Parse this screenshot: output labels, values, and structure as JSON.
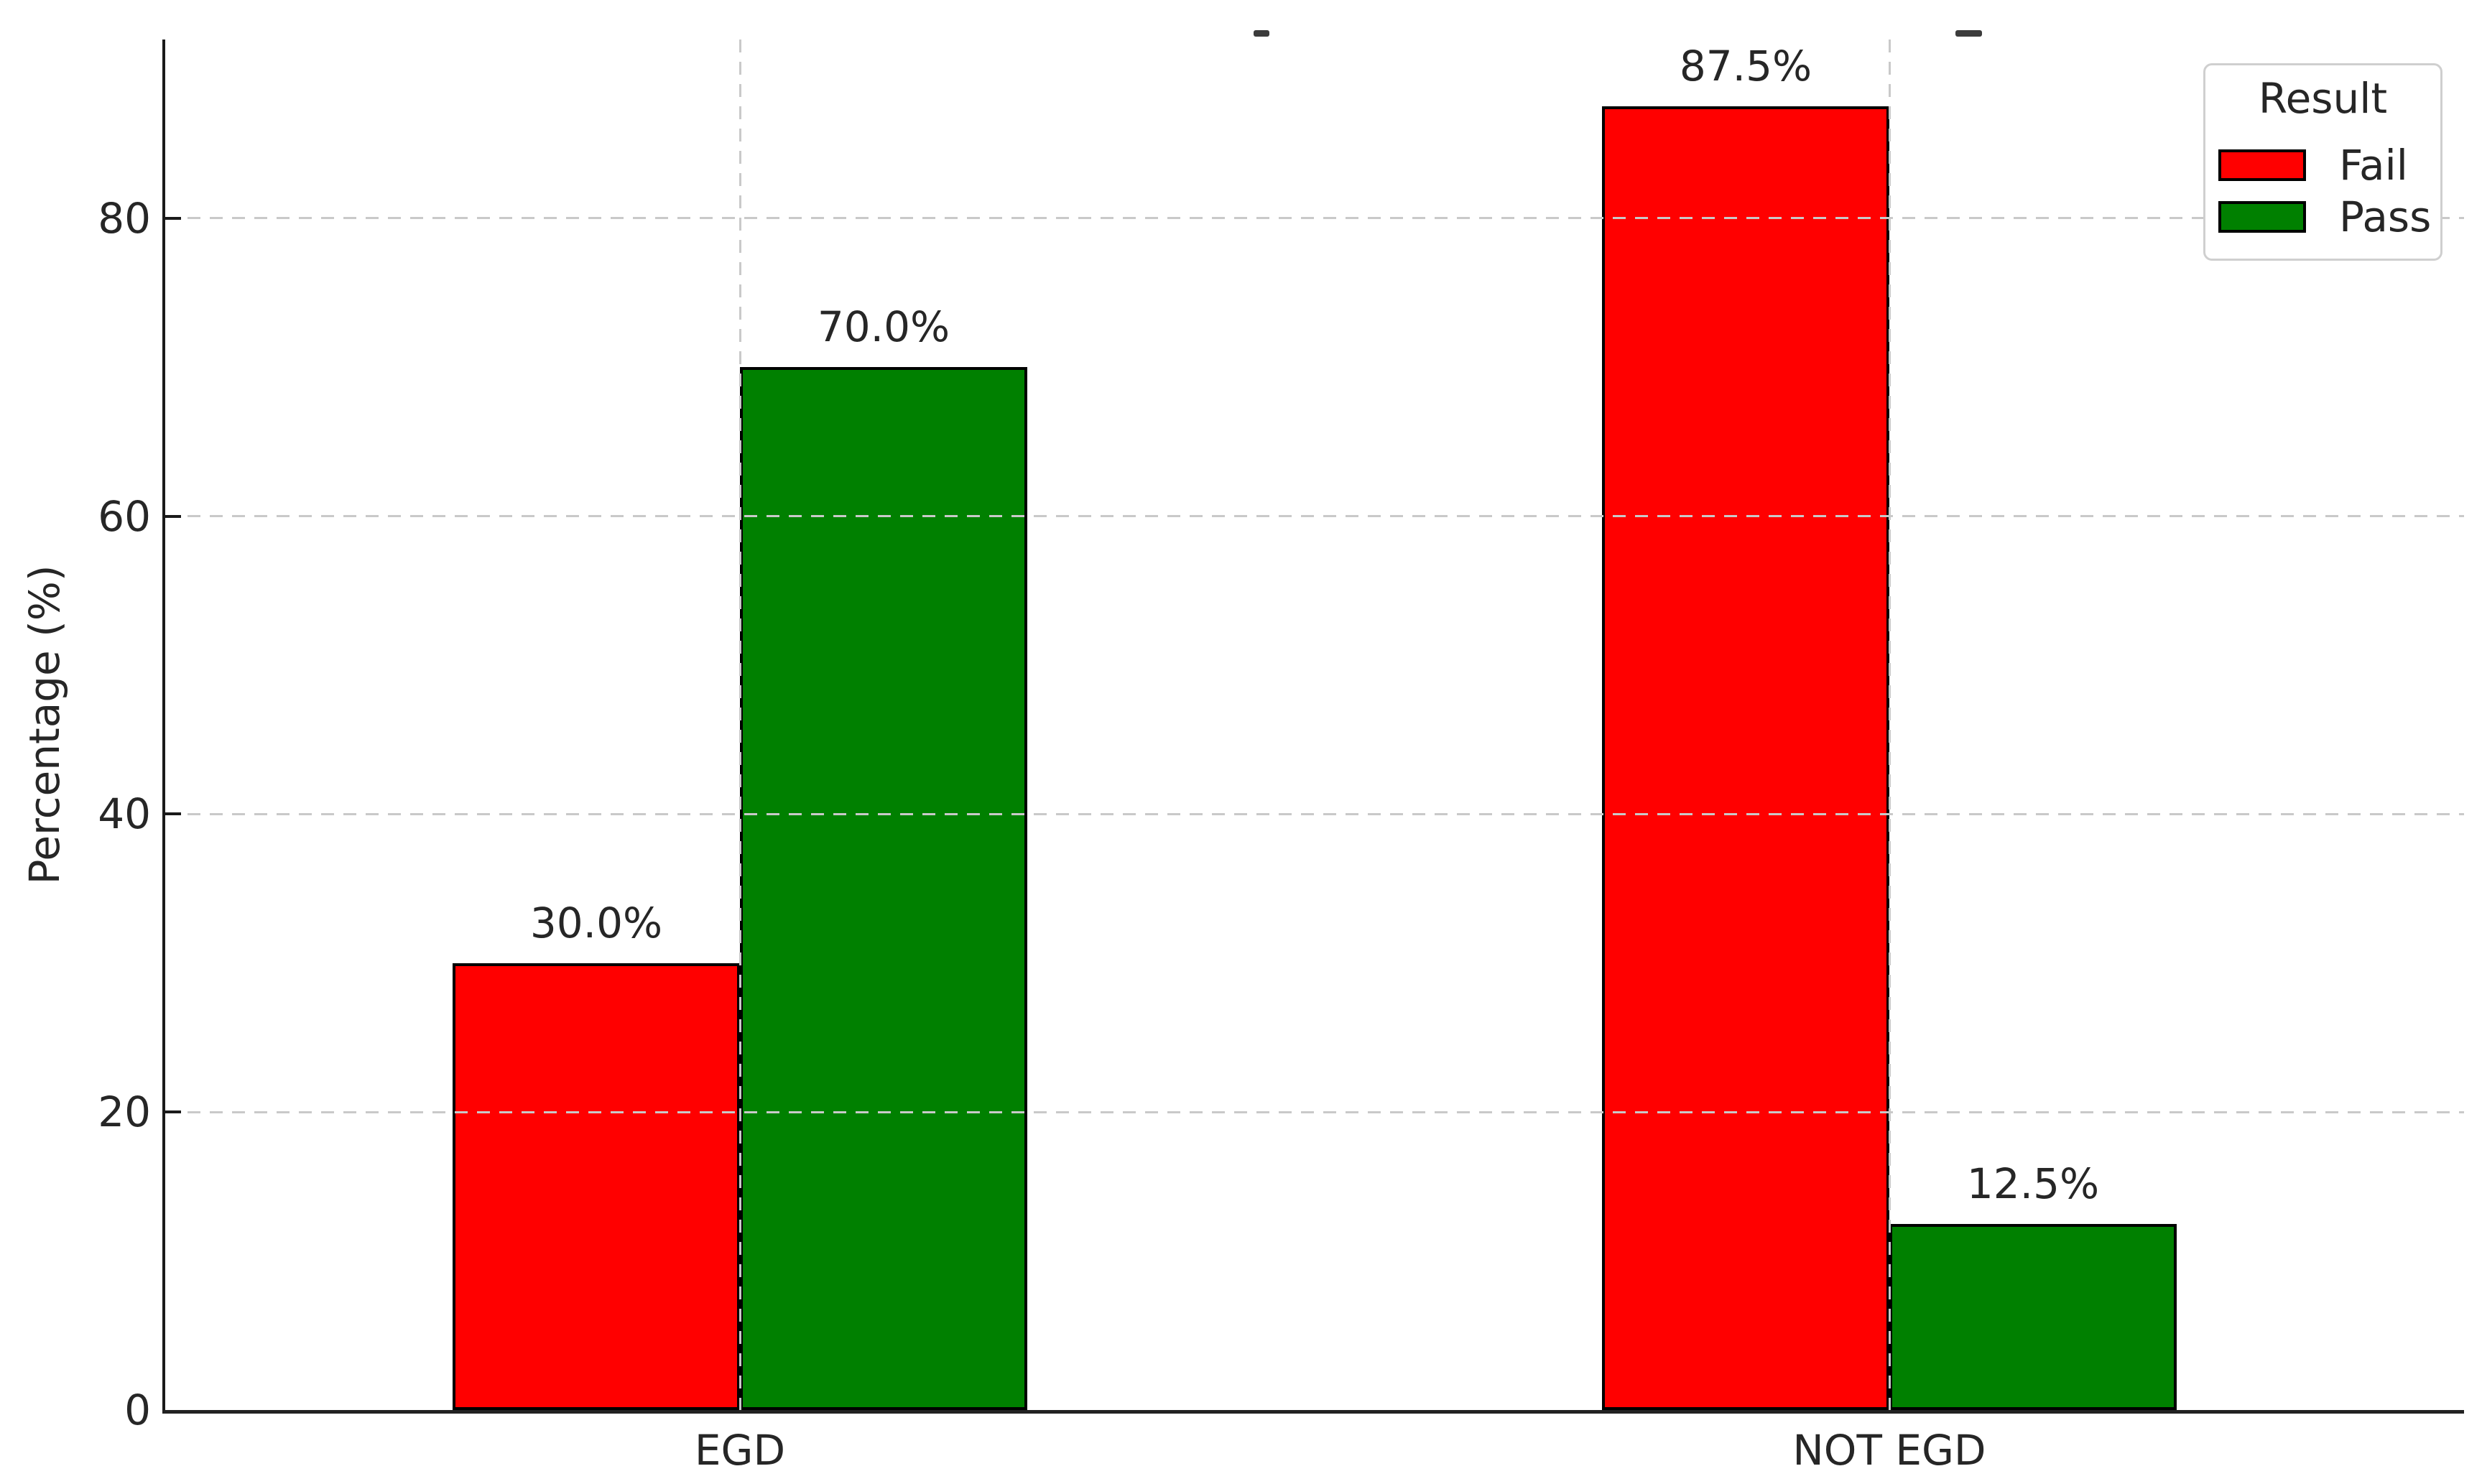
{
  "chart_data": {
    "type": "bar",
    "categories": [
      "EGD",
      "NOT EGD"
    ],
    "series": [
      {
        "name": "Fail",
        "color": "#ff0000",
        "values": [
          30.0,
          87.5
        ],
        "labels": [
          "30.0%",
          "87.5%"
        ]
      },
      {
        "name": "Pass",
        "color": "#008000",
        "values": [
          70.0,
          12.5
        ],
        "labels": [
          "70.0%",
          "12.5%"
        ]
      }
    ],
    "xlabel": "",
    "ylabel": "Percentage (%)",
    "yticks": [
      0,
      20,
      40,
      60,
      80
    ],
    "ylim": [
      0,
      92
    ],
    "grid": {
      "visible": true,
      "style": "dashed",
      "color": "#c9c9c9",
      "axes": "both",
      "drawn_over_bars": true
    },
    "bar_edge_color": "#000000",
    "legend": {
      "title": "Result",
      "position": "upper-right",
      "entries": [
        {
          "label": "Fail",
          "color": "#ff0000"
        },
        {
          "label": "Pass",
          "color": "#008000"
        }
      ]
    },
    "title": ""
  },
  "colors": {
    "background": "#ffffff",
    "axis_spine": "#1a1a1a",
    "text": "#262626",
    "grid": "#c9c9c9",
    "legend_border": "#cfcfcf",
    "fail": "#ff0000",
    "pass": "#008000"
  }
}
